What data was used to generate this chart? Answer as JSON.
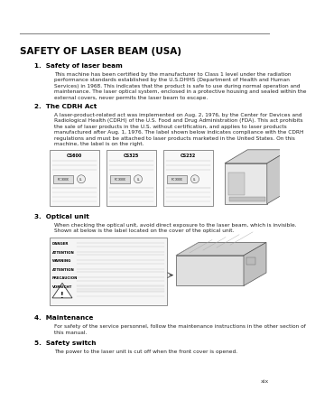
{
  "page_bg": "#ffffff",
  "title": "SAFETY OF LASER BEAM (USA)",
  "sections": [
    {
      "heading": "1.  Safety of laser beam",
      "body": "This machine has been certified by the manufacturer to Class 1 level under the radiation\nperformance standards established by the U.S.DHHS (Department of Health and Human\nServices) in 1968. This indicates that the product is safe to use during normal operation and\nmaintenance. The laser optical system, enclosed in a protective housing and sealed within the\nexternal covers, never permits the laser beam to escape."
    },
    {
      "heading": "2.  The CDRH Act",
      "body": "A laser-product-related act was implemented on Aug. 2, 1976, by the Center for Devices and\nRadiological Health (CDRH) of the U.S. Food and Drug Administration (FDA). This act prohibits\nthe sale of laser products in the U.S. without certification, and applies to laser products\nmanufactured after Aug. 1, 1976. The label shown below indicates compliance with the CDRH\nregulations and must be attached to laser products marketed in the United States. On this\nmachine, the label is on the right."
    },
    {
      "heading": "3.  Optical unit",
      "body": "When checking the optical unit, avoid direct exposure to the laser beam, which is invisible.\nShown at below is the label located on the cover of the optical unit."
    },
    {
      "heading": "4.  Maintenance",
      "body": "For safety of the service personnel, follow the maintenance instructions in the other section of\nthis manual."
    },
    {
      "heading": "5.  Safety switch",
      "body": "The power to the laser unit is cut off when the front cover is opened."
    }
  ],
  "label_names": [
    "CS600",
    "CS325",
    "CS232"
  ],
  "optical_labels": [
    "DANGER",
    "ATTENTION",
    "WARNING",
    "ATTENTION",
    "PRECAUCION",
    "VORSICHT"
  ],
  "footer": "xix",
  "line_color": "#888888",
  "heading_color": "#000000",
  "body_color": "#222222",
  "title_color": "#000000"
}
